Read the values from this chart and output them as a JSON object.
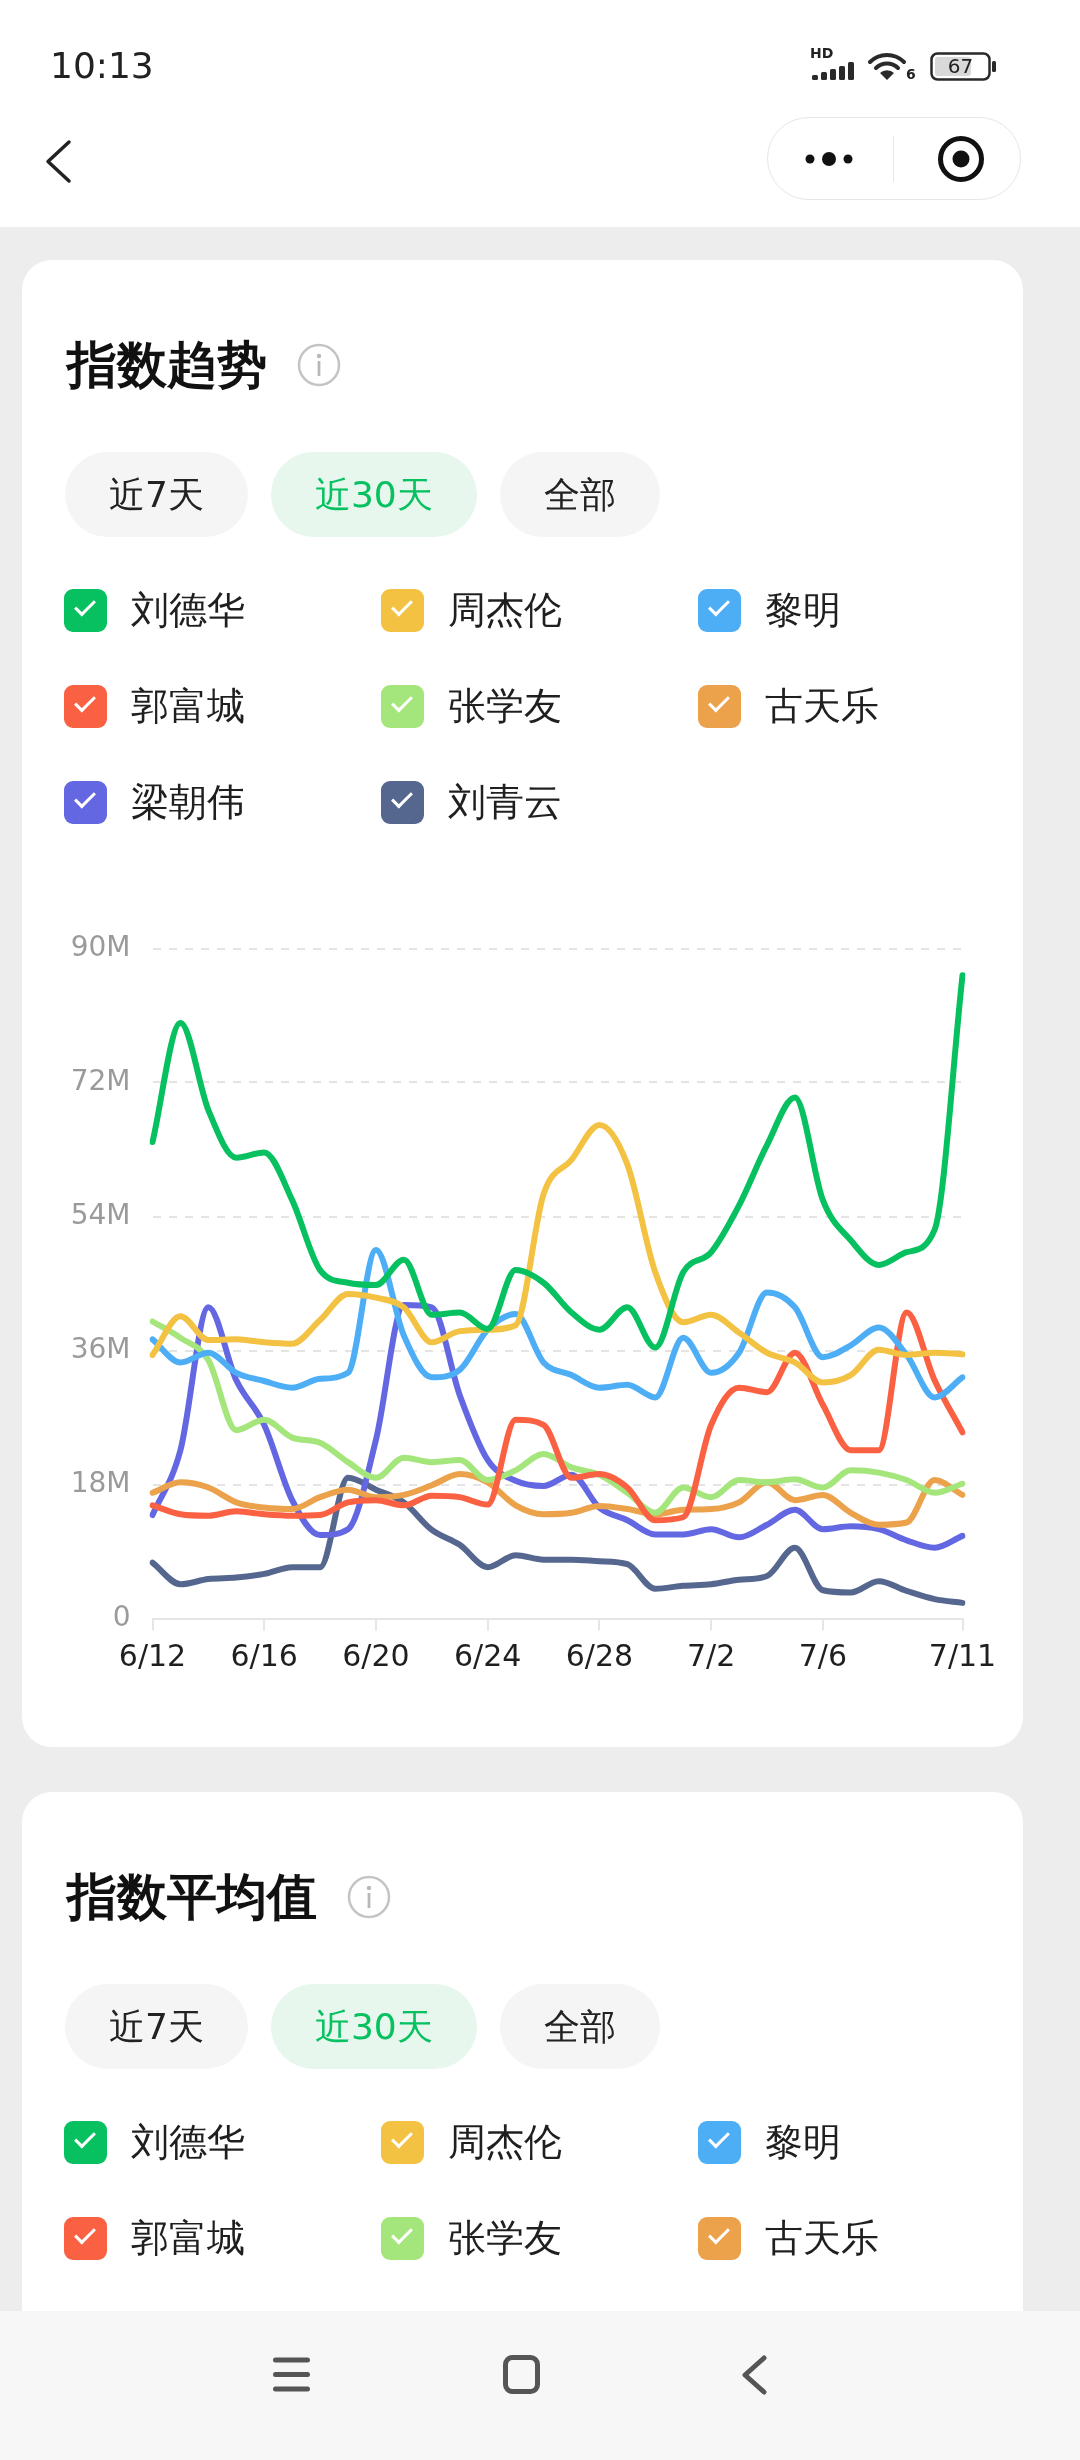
{
  "chart_data": [
    {
      "type": "line",
      "title": "指数趋势",
      "annotations": [
        "10:13",
        "HD",
        "6",
        "67",
        "近7天",
        "近30天",
        "全部"
      ],
      "categories": [
        "6/12",
        null,
        null,
        null,
        "6/16",
        null,
        null,
        null,
        "6/20",
        null,
        null,
        null,
        "6/24",
        null,
        null,
        null,
        "6/28",
        null,
        null,
        null,
        "7/2",
        null,
        null,
        null,
        "7/6",
        null,
        null,
        null,
        null,
        "7/11"
      ],
      "series": [
        {
          "name": "刘德华",
          "color": "#07c160",
          "values": [
            64,
            80,
            68.3,
            61.9,
            62.6,
            56.2,
            46.8,
            45.1,
            44.8,
            48.2,
            40.8,
            41.1,
            38.9,
            46.8,
            45.1,
            41.1,
            38.8,
            41.8,
            36.4,
            46.5,
            49.2,
            55.5,
            63.6,
            70,
            56.2,
            50.8,
            47.5,
            49.2,
            52.2,
            86.4
          ]
        },
        {
          "name": "周杰伦",
          "color": "#f4c243",
          "values": [
            35.4,
            40.6,
            37.4,
            37.5,
            37.1,
            36.9,
            40.1,
            43.6,
            43.1,
            41.8,
            37.1,
            38.6,
            38.8,
            39.4,
            57,
            61.6,
            66.3,
            61,
            46.5,
            39.8,
            40.8,
            38.4,
            35.7,
            34.4,
            31.7,
            32.7,
            36.1,
            35.4,
            35.7,
            35.5
          ]
        },
        {
          "name": "黎明",
          "color": "#4eaef5",
          "values": [
            37.5,
            34.4,
            35.7,
            33,
            31.9,
            31,
            32.2,
            33,
            49.5,
            38,
            32.4,
            33.4,
            38.8,
            40.9,
            34.4,
            32.7,
            31,
            31.4,
            29.7,
            37.7,
            33,
            35.7,
            43.8,
            41.8,
            35.1,
            36.7,
            39.1,
            35.4,
            29.7,
            32.4
          ]
        },
        {
          "name": "郭富城",
          "color": "#fa6142",
          "values": [
            15.2,
            14,
            13.8,
            14.4,
            14,
            13.8,
            13.9,
            15.6,
            15.9,
            15.2,
            16.5,
            16.3,
            15.3,
            26.7,
            26,
            18.9,
            19.4,
            17.6,
            13.2,
            13.6,
            26,
            31,
            30.4,
            35.7,
            28.7,
            22.6,
            22.6,
            41.1,
            32,
            25
          ]
        },
        {
          "name": "张学友",
          "color": "#a5e67c",
          "values": [
            39.9,
            37.7,
            34.7,
            25.3,
            26.7,
            24.3,
            23.6,
            21,
            18.9,
            21.6,
            21,
            21.3,
            18.6,
            19.9,
            22.1,
            20.3,
            19.3,
            16.9,
            14.2,
            17.6,
            16.3,
            18.6,
            18.3,
            18.7,
            17.6,
            19.9,
            19.6,
            18.6,
            16.9,
            18.1
          ]
        },
        {
          "name": "古天乐",
          "color": "#eca14b",
          "values": [
            16.9,
            18.3,
            17.6,
            15.6,
            14.9,
            14.7,
            16.3,
            17.3,
            16.3,
            16.6,
            17.9,
            19.4,
            18.3,
            15.2,
            14,
            14.2,
            15.1,
            14.7,
            14,
            14.6,
            14.7,
            15.6,
            18.3,
            15.9,
            16.6,
            14.2,
            12.6,
            12.9,
            18.6,
            16.6
          ]
        },
        {
          "name": "梁朝伟",
          "color": "#6467e2",
          "values": [
            13.9,
            22.6,
            41.8,
            32,
            26,
            15.9,
            11.2,
            12,
            24,
            42.1,
            41.8,
            30,
            21.3,
            18.5,
            17.8,
            19.3,
            14.9,
            13.2,
            11.3,
            11.3,
            12,
            10.9,
            12.6,
            14.6,
            12,
            12.4,
            12,
            10.5,
            9.5,
            11.1
          ]
        },
        {
          "name": "刘青云",
          "color": "#56678f",
          "values": [
            7.5,
            4.6,
            5.3,
            5.5,
            6,
            6.9,
            6.9,
            18.9,
            17.3,
            15.6,
            11.9,
            9.9,
            6.9,
            8.5,
            7.9,
            7.9,
            7.7,
            7.3,
            4,
            4.4,
            4.6,
            5.2,
            5.7,
            9.5,
            3.8,
            3.5,
            5,
            3.7,
            2.6,
            2.1
          ]
        }
      ],
      "ylim": [
        0,
        90
      ],
      "yticks": [
        0,
        {
          "value": 18,
          "label": "18M"
        },
        {
          "value": 36,
          "label": "36M"
        },
        {
          "value": 54,
          "label": "54M"
        },
        {
          "value": 72,
          "label": "72M"
        },
        {
          "value": 90,
          "label": "90M"
        }
      ],
      "grid": "y",
      "legend": "top",
      "marker": "none",
      "line_style": "solid"
    },
    {
      "type": "other",
      "title": "指数平均值",
      "annotations": [
        "近7天",
        "近30天",
        "全部"
      ],
      "series": [
        {
          "name": "刘德华",
          "color": "#07c160"
        },
        {
          "name": "周杰伦",
          "color": "#f4c243"
        },
        {
          "name": "黎明",
          "color": "#4eaef5"
        },
        {
          "name": "郭富城",
          "color": "#fa6142"
        },
        {
          "name": "张学友",
          "color": "#a5e67c"
        },
        {
          "name": "古天乐",
          "color": "#eca14b"
        }
      ],
      "legend": "top"
    }
  ]
}
